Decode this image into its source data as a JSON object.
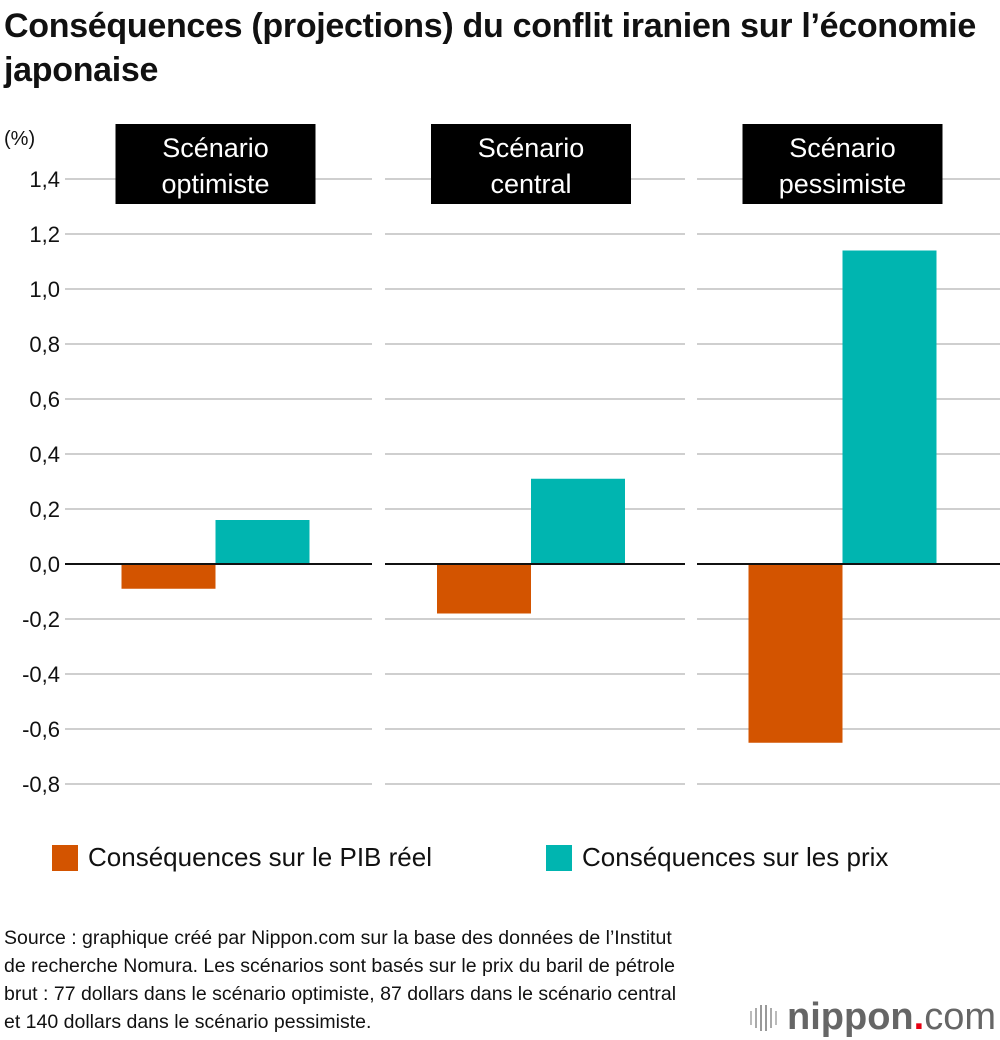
{
  "title": "Conséquences (projections) du conflit iranien sur l’économie japonaise",
  "chart_data": {
    "type": "bar",
    "title": "Conséquences (projections) du conflit iranien sur l’économie japonaise",
    "ylabel": "(%)",
    "ylim": [
      -0.8,
      1.4
    ],
    "yticks": [
      1.4,
      1.2,
      1.0,
      0.8,
      0.6,
      0.4,
      0.2,
      0.0,
      -0.2,
      -0.4,
      -0.6,
      -0.8
    ],
    "ytick_labels": [
      "1,4",
      "1,2",
      "1,0",
      "0,8",
      "0,6",
      "0,4",
      "0,2",
      "0,0",
      "-0,2",
      "-0,4",
      "-0,6",
      "-0,8"
    ],
    "grid": true,
    "legend_position": "bottom",
    "categories": [
      "Scénario optimiste",
      "Scénario central",
      "Scénario pessimiste"
    ],
    "category_lines": [
      [
        "Scénario",
        "optimiste"
      ],
      [
        "Scénario",
        "central"
      ],
      [
        "Scénario",
        "pessimiste"
      ]
    ],
    "series": [
      {
        "name": "Conséquences sur le PIB réel",
        "color": "#d35400",
        "values": [
          -0.09,
          -0.18,
          -0.65
        ]
      },
      {
        "name": "Conséquences sur les prix",
        "color": "#00b5b0",
        "values": [
          0.16,
          0.31,
          1.14
        ]
      }
    ]
  },
  "source": "Source : graphique créé par Nippon.com sur la base des données de l’Institut de recherche Nomura. Les scénarios sont basés sur le prix du baril de pétrole brut : 77 dollars dans le scénario optimiste, 87 dollars dans le scénario central et 140 dollars dans le scénario pessimiste.",
  "logo": {
    "name": "nippon",
    "dot": ".",
    "com": "com"
  }
}
